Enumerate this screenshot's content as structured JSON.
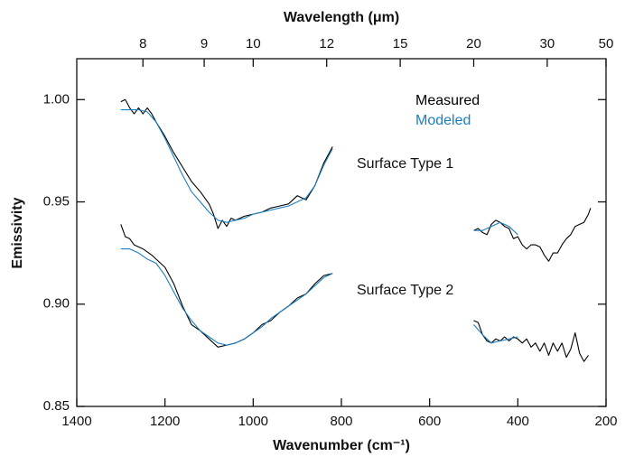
{
  "chart_data": {
    "type": "line",
    "x_label": "Wavenumber (cm⁻¹)",
    "x2_label": "Wavelength (μm)",
    "y_label": "Emissivity",
    "xlim": [
      1400,
      200
    ],
    "xticks": [
      1400,
      1200,
      1000,
      800,
      600,
      400,
      200
    ],
    "x2lim": [
      7.142857,
      50
    ],
    "x2scale": "reciprocal",
    "x2ticks": [
      8,
      9,
      10,
      12,
      15,
      20,
      30,
      50
    ],
    "ylim": [
      0.85,
      1.02
    ],
    "yticks": [
      0.85,
      {
        "value": 0.9,
        "label": "0.90"
      },
      0.95,
      {
        "value": 1,
        "label": "1.00"
      }
    ],
    "groups": [
      {
        "label": "Surface Type 1",
        "series": [
          {
            "name": "Measured",
            "color": "#000000",
            "x": [
              1300,
              1290,
              1280,
              1270,
              1260,
              1250,
              1240,
              1230,
              1220,
              1200,
              1180,
              1160,
              1140,
              1120,
              1100,
              1090,
              1080,
              1070,
              1060,
              1050,
              1040,
              1020,
              1000,
              980,
              960,
              940,
              920,
              900,
              880,
              860,
              840,
              820,
              null,
              500,
              490,
              480,
              470,
              460,
              450,
              440,
              430,
              420,
              410,
              400,
              390,
              380,
              370,
              360,
              350,
              340,
              330,
              320,
              310,
              300,
              290,
              280,
              270,
              260,
              250,
              240,
              235
            ],
            "values": [
              0.999,
              1.0,
              0.996,
              0.993,
              0.996,
              0.993,
              0.996,
              0.993,
              0.989,
              0.982,
              0.974,
              0.967,
              0.96,
              0.955,
              0.949,
              0.944,
              0.937,
              0.941,
              0.938,
              0.942,
              0.941,
              0.943,
              0.944,
              0.945,
              0.947,
              0.948,
              0.949,
              0.953,
              0.951,
              0.958,
              0.969,
              0.977,
              null,
              0.936,
              0.937,
              0.935,
              0.934,
              0.939,
              0.941,
              0.94,
              0.938,
              0.937,
              0.932,
              0.933,
              0.929,
              0.927,
              0.929,
              0.929,
              0.928,
              0.924,
              0.921,
              0.925,
              0.925,
              0.929,
              0.932,
              0.934,
              0.938,
              0.939,
              0.94,
              0.944,
              0.947
            ]
          },
          {
            "name": "Modeled",
            "color": "#1a7fc1",
            "x": [
              1300,
              1280,
              1260,
              1240,
              1220,
              1200,
              1180,
              1160,
              1140,
              1120,
              1100,
              1080,
              1060,
              1040,
              1020,
              1000,
              980,
              960,
              940,
              920,
              900,
              880,
              860,
              840,
              820,
              null,
              500,
              480,
              460,
              440,
              420,
              400
            ],
            "values": [
              0.995,
              0.995,
              0.995,
              0.994,
              0.989,
              0.981,
              0.972,
              0.963,
              0.955,
              0.95,
              0.945,
              0.941,
              0.94,
              0.941,
              0.942,
              0.944,
              0.945,
              0.946,
              0.947,
              0.948,
              0.95,
              0.952,
              0.958,
              0.968,
              0.976,
              null,
              0.936,
              0.936,
              0.938,
              0.94,
              0.938,
              0.934
            ]
          }
        ]
      },
      {
        "label": "Surface Type 2",
        "series": [
          {
            "color": "#000000",
            "x": [
              1300,
              1290,
              1280,
              1270,
              1250,
              1230,
              1200,
              1180,
              1160,
              1140,
              1120,
              1100,
              1080,
              1060,
              1040,
              1020,
              1000,
              980,
              960,
              940,
              920,
              900,
              880,
              860,
              840,
              820,
              null,
              500,
              490,
              480,
              470,
              460,
              450,
              440,
              430,
              420,
              410,
              400,
              390,
              380,
              370,
              360,
              350,
              340,
              330,
              320,
              310,
              300,
              290,
              280,
              270,
              260,
              250,
              240
            ],
            "values": [
              0.939,
              0.933,
              0.932,
              0.929,
              0.927,
              0.924,
              0.918,
              0.91,
              0.899,
              0.89,
              0.887,
              0.883,
              0.879,
              0.88,
              0.881,
              0.883,
              0.886,
              0.89,
              0.892,
              0.896,
              0.899,
              0.903,
              0.905,
              0.91,
              0.914,
              0.915,
              null,
              0.892,
              0.891,
              0.885,
              0.882,
              0.881,
              0.883,
              0.882,
              0.884,
              0.882,
              0.884,
              0.883,
              0.881,
              0.883,
              0.879,
              0.881,
              0.877,
              0.881,
              0.875,
              0.881,
              0.877,
              0.881,
              0.874,
              0.878,
              0.886,
              0.876,
              0.872,
              0.875
            ]
          },
          {
            "color": "#1a7fc1",
            "x": [
              1300,
              1280,
              1260,
              1240,
              1220,
              1200,
              1180,
              1160,
              1140,
              1120,
              1100,
              1080,
              1060,
              1040,
              1020,
              1000,
              980,
              960,
              940,
              920,
              900,
              880,
              860,
              840,
              820,
              null,
              500,
              480,
              460,
              440,
              420,
              400
            ],
            "values": [
              0.927,
              0.927,
              0.925,
              0.922,
              0.92,
              0.914,
              0.906,
              0.898,
              0.892,
              0.887,
              0.884,
              0.881,
              0.88,
              0.881,
              0.883,
              0.886,
              0.889,
              0.893,
              0.896,
              0.899,
              0.902,
              0.905,
              0.909,
              0.913,
              0.915,
              null,
              0.89,
              0.885,
              0.881,
              0.882,
              0.883,
              0.884
            ]
          }
        ]
      }
    ]
  }
}
